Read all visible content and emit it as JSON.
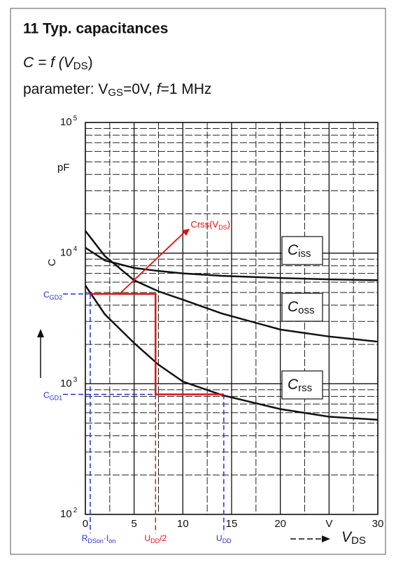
{
  "chart_data": {
    "type": "line",
    "title": "11 Typ. capacitances",
    "subtitle_parts": {
      "a": "C = f (V",
      "sub": "DS",
      "b": ")"
    },
    "parameter_parts": {
      "a": "parameter: V",
      "sub": "GS",
      "b": "=0V, ",
      "f": "f",
      "c": "=1 MHz"
    },
    "y_label": "C",
    "y_unit": "pF",
    "x_label_parts": {
      "main": "V",
      "sub": "DS"
    },
    "log_y": true,
    "grid": true,
    "xlim": [
      0,
      30
    ],
    "ylim": [
      100,
      100000
    ],
    "xticks": [
      0,
      5,
      10,
      15,
      20,
      {
        "value": 25,
        "label": "V"
      },
      30
    ],
    "xticks_minor": [
      2.5,
      7.5,
      12.5,
      17.5,
      22.5,
      27.5
    ],
    "yticks": [
      {
        "value": 100,
        "label": "10",
        "sup": "2"
      },
      {
        "value": 1000,
        "label": "10",
        "sup": "3"
      },
      {
        "value": 10000,
        "label": "10",
        "sup": "4"
      },
      {
        "value": 100000,
        "label": "10",
        "sup": "5"
      }
    ],
    "yticks_minor": [
      200,
      300,
      400,
      500,
      600,
      700,
      800,
      900,
      2000,
      3000,
      4000,
      5000,
      6000,
      7000,
      8000,
      9000,
      20000,
      30000,
      40000,
      50000,
      60000,
      70000,
      80000,
      90000
    ],
    "x": [
      0,
      2,
      5,
      7.5,
      10,
      14,
      20,
      25,
      30
    ],
    "series": [
      {
        "name_parts": {
          "main": "C",
          "sub": "iss"
        },
        "color": "#111111",
        "values": [
          11000,
          8800,
          7700,
          7300,
          7000,
          6700,
          6450,
          6300,
          6200
        ]
      },
      {
        "name_parts": {
          "main": "C",
          "sub": "oss"
        },
        "color": "#111111",
        "values": [
          14800,
          9500,
          6200,
          5100,
          4400,
          3450,
          2600,
          2300,
          2100
        ]
      },
      {
        "name_parts": {
          "main": "C",
          "sub": "rss"
        },
        "color": "#111111",
        "values": [
          5650,
          3400,
          2050,
          1400,
          1040,
          820,
          640,
          560,
          530
        ]
      }
    ],
    "annotations": {
      "arrow_label_parts": {
        "a": "Crss(V",
        "sub": "DS",
        "b": ")"
      },
      "cgd2": {
        "label": "C",
        "sub": "GD2",
        "value": 4870
      },
      "cgd1": {
        "label": "C",
        "sub": "GD1",
        "value": 830
      },
      "rdson": {
        "label": "R",
        "sub": "DSon",
        "b": "·I",
        "sub2": "on",
        "x": 0.5
      },
      "udd_half": {
        "label": "U",
        "sub": "DD",
        "b": "/2",
        "x": 7.2
      },
      "udd": {
        "label": "U",
        "sub": "DD",
        "x": 14.2
      }
    }
  }
}
